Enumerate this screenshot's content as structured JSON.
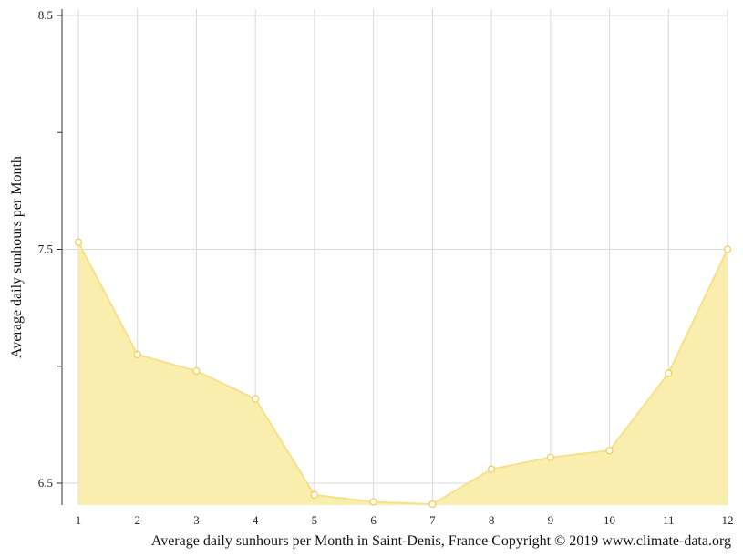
{
  "chart_data": {
    "type": "area",
    "x": [
      1,
      2,
      3,
      4,
      5,
      6,
      7,
      8,
      9,
      10,
      11,
      12
    ],
    "series": [
      {
        "values": [
          7.53,
          7.05,
          6.98,
          6.86,
          6.45,
          6.42,
          6.41,
          6.56,
          6.61,
          6.64,
          6.97,
          7.5
        ]
      }
    ],
    "ylabel": "Average daily sunhours per Month",
    "xlabel": "Average daily sunhours per Month in Saint-Denis, France Copyright © 2019 www.climate-data.org",
    "xlim": [
      1,
      12
    ],
    "ylim": [
      6.41,
      8.5
    ],
    "y_tick_labels": [
      6.5,
      7.5,
      8.5
    ],
    "y_minor_ticks": [
      7.0,
      8.0
    ],
    "grid": true,
    "colors": {
      "fill": "#faeeaf",
      "line": "#f7e08a",
      "marker_stroke": "#f2cf55",
      "grid": "#d9d9d9"
    }
  }
}
